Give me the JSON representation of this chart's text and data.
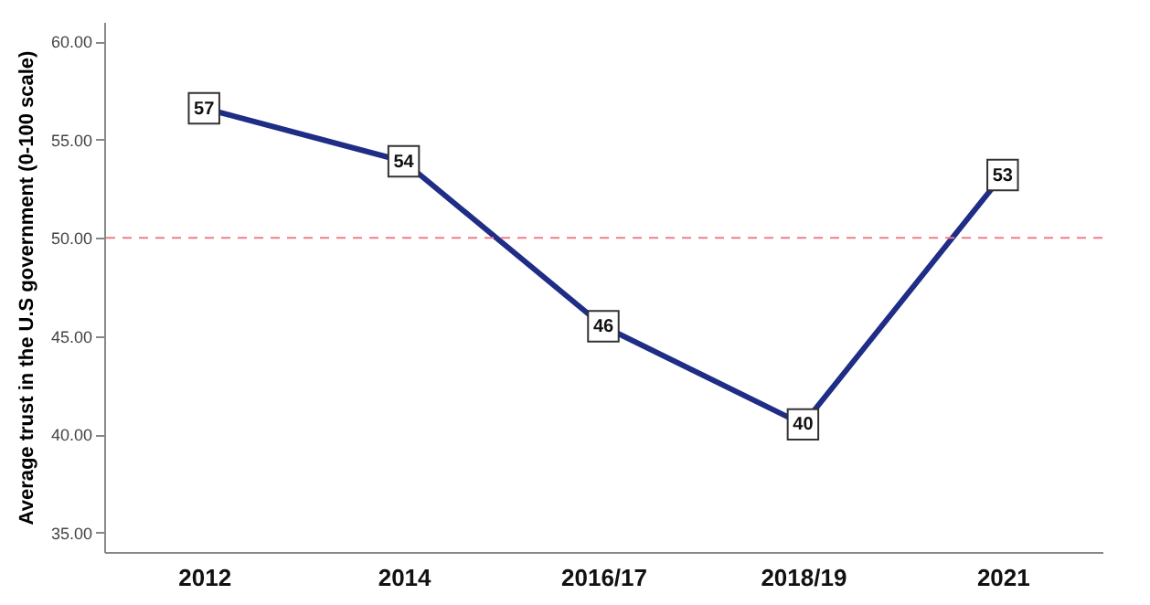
{
  "chart_data": {
    "type": "line",
    "ylabel": "Average trust in the U.S government (0-100 scale)",
    "categories": [
      "2012",
      "2014",
      "2016/17",
      "2018/19",
      "2021"
    ],
    "series": [
      {
        "color": "#1f2d86",
        "values": [
          56.6,
          53.9,
          45.5,
          40.5,
          53.2
        ],
        "value_labels": [
          "57",
          "54",
          "46",
          "40",
          "53"
        ]
      }
    ],
    "ylim": [
      34,
      61
    ],
    "yticks": [
      {
        "value": 35,
        "label": "35.00"
      },
      {
        "value": 40,
        "label": "40.00"
      },
      {
        "value": 45,
        "label": "45.00"
      },
      {
        "value": 50,
        "label": "50.00"
      },
      {
        "value": 55,
        "label": "55.00"
      },
      {
        "value": 60,
        "label": "60.00"
      }
    ],
    "ref_lines": [
      {
        "axis": "y",
        "value": 50,
        "color": "#f07c8c",
        "line_style": "dashed"
      }
    ],
    "marker": "square",
    "line_style": "solid"
  }
}
